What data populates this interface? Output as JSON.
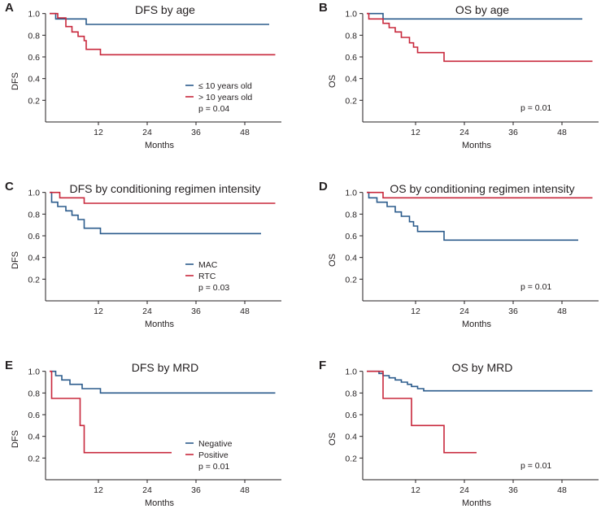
{
  "colors": {
    "blue": "#2b5b8c",
    "red": "#c8283c",
    "axis": "#231f20"
  },
  "chart_data": [
    {
      "id": "A",
      "type": "line",
      "title": "DFS by age",
      "xlabel": "Months",
      "ylabel": "DFS",
      "xlim": [
        -1,
        57
      ],
      "ylim": [
        0,
        1.05
      ],
      "xticks": [
        12,
        24,
        36,
        48
      ],
      "yticks": [
        0.2,
        0.4,
        0.6,
        0.8,
        1.0
      ],
      "xtick_labels": [
        "12",
        "24",
        "36",
        "48"
      ],
      "ytick_labels": [
        "0.2",
        "0.4",
        "0.6",
        "0.8",
        "1.0"
      ],
      "legend": {
        "position": "bottom-right"
      },
      "pvalue": "p = 0.04",
      "series": [
        {
          "name": "≤ 10 years old",
          "color": "blue",
          "points": [
            [
              0,
              1.0
            ],
            [
              1.5,
              1.0
            ],
            [
              1.5,
              0.95
            ],
            [
              9,
              0.95
            ],
            [
              9,
              0.9
            ],
            [
              54,
              0.9
            ]
          ]
        },
        {
          "name": "> 10 years old",
          "color": "red",
          "points": [
            [
              0,
              1.0
            ],
            [
              2,
              1.0
            ],
            [
              2,
              0.96
            ],
            [
              4,
              0.96
            ],
            [
              4,
              0.88
            ],
            [
              5.5,
              0.88
            ],
            [
              5.5,
              0.83
            ],
            [
              7,
              0.83
            ],
            [
              7,
              0.79
            ],
            [
              8.5,
              0.79
            ],
            [
              8.5,
              0.75
            ],
            [
              9,
              0.75
            ],
            [
              9,
              0.67
            ],
            [
              12.5,
              0.67
            ],
            [
              12.5,
              0.62
            ],
            [
              55.5,
              0.62
            ]
          ]
        }
      ]
    },
    {
      "id": "B",
      "type": "line",
      "title": "OS by age",
      "xlabel": "Months",
      "ylabel": "OS",
      "xlim": [
        -1,
        57
      ],
      "ylim": [
        0,
        1.05
      ],
      "xticks": [
        12,
        24,
        36,
        48
      ],
      "yticks": [
        0.2,
        0.4,
        0.6,
        0.8,
        1.0
      ],
      "xtick_labels": [
        "12",
        "24",
        "36",
        "48"
      ],
      "ytick_labels": [
        "0.2",
        "0.4",
        "0.6",
        "0.8",
        "1.0"
      ],
      "legend": {
        "position": "bottom-right"
      },
      "pvalue": "p = 0.01",
      "series": [
        {
          "name": "",
          "color": "blue",
          "points": [
            [
              0,
              1.0
            ],
            [
              4,
              1.0
            ],
            [
              4,
              0.95
            ],
            [
              53,
              0.95
            ]
          ]
        },
        {
          "name": "",
          "color": "red",
          "points": [
            [
              0,
              1.0
            ],
            [
              0.5,
              1.0
            ],
            [
              0.5,
              0.95
            ],
            [
              4,
              0.95
            ],
            [
              4,
              0.91
            ],
            [
              5.5,
              0.91
            ],
            [
              5.5,
              0.87
            ],
            [
              7,
              0.87
            ],
            [
              7,
              0.83
            ],
            [
              8.5,
              0.83
            ],
            [
              8.5,
              0.78
            ],
            [
              10.5,
              0.78
            ],
            [
              10.5,
              0.73
            ],
            [
              11.5,
              0.73
            ],
            [
              11.5,
              0.69
            ],
            [
              12.5,
              0.69
            ],
            [
              12.5,
              0.64
            ],
            [
              19,
              0.64
            ],
            [
              19,
              0.56
            ],
            [
              55.5,
              0.56
            ]
          ]
        }
      ]
    },
    {
      "id": "C",
      "type": "line",
      "title": "DFS by conditioning regimen intensity",
      "xlabel": "Months",
      "ylabel": "DFS",
      "xlim": [
        -1,
        57
      ],
      "ylim": [
        0,
        1.05
      ],
      "xticks": [
        12,
        24,
        36,
        48
      ],
      "yticks": [
        0.2,
        0.4,
        0.6,
        0.8,
        1.0
      ],
      "xtick_labels": [
        "12",
        "24",
        "36",
        "48"
      ],
      "ytick_labels": [
        "0.2",
        "0.4",
        "0.6",
        "0.8",
        "1.0"
      ],
      "legend": {
        "position": "bottom-right"
      },
      "pvalue": "p = 0.03",
      "series": [
        {
          "name": "MAC",
          "color": "blue",
          "points": [
            [
              0,
              1.0
            ],
            [
              0.5,
              1.0
            ],
            [
              0.5,
              0.91
            ],
            [
              2,
              0.91
            ],
            [
              2,
              0.87
            ],
            [
              4,
              0.87
            ],
            [
              4,
              0.83
            ],
            [
              5.5,
              0.83
            ],
            [
              5.5,
              0.79
            ],
            [
              7,
              0.79
            ],
            [
              7,
              0.75
            ],
            [
              8.5,
              0.75
            ],
            [
              8.5,
              0.67
            ],
            [
              12.5,
              0.67
            ],
            [
              12.5,
              0.62
            ],
            [
              52,
              0.62
            ]
          ]
        },
        {
          "name": "RTC",
          "color": "red",
          "points": [
            [
              0,
              1.0
            ],
            [
              2.5,
              1.0
            ],
            [
              2.5,
              0.95
            ],
            [
              8.5,
              0.95
            ],
            [
              8.5,
              0.9
            ],
            [
              55.5,
              0.9
            ]
          ]
        }
      ]
    },
    {
      "id": "D",
      "type": "line",
      "title": "OS by conditioning regimen intensity",
      "xlabel": "Months",
      "ylabel": "OS",
      "xlim": [
        -1,
        57
      ],
      "ylim": [
        0,
        1.05
      ],
      "xticks": [
        12,
        24,
        36,
        48
      ],
      "yticks": [
        0.2,
        0.4,
        0.6,
        0.8,
        1.0
      ],
      "xtick_labels": [
        "12",
        "24",
        "36",
        "48"
      ],
      "ytick_labels": [
        "0.2",
        "0.4",
        "0.6",
        "0.8",
        "1.0"
      ],
      "legend": {
        "position": "bottom-right"
      },
      "pvalue": "p = 0.01",
      "series": [
        {
          "name": "",
          "color": "blue",
          "points": [
            [
              0,
              1.0
            ],
            [
              0.5,
              1.0
            ],
            [
              0.5,
              0.95
            ],
            [
              2.5,
              0.95
            ],
            [
              2.5,
              0.91
            ],
            [
              5,
              0.91
            ],
            [
              5,
              0.87
            ],
            [
              7,
              0.87
            ],
            [
              7,
              0.82
            ],
            [
              8.5,
              0.82
            ],
            [
              8.5,
              0.78
            ],
            [
              10.5,
              0.78
            ],
            [
              10.5,
              0.73
            ],
            [
              11.5,
              0.73
            ],
            [
              11.5,
              0.69
            ],
            [
              12.5,
              0.69
            ],
            [
              12.5,
              0.64
            ],
            [
              19,
              0.64
            ],
            [
              19,
              0.56
            ],
            [
              52,
              0.56
            ]
          ]
        },
        {
          "name": "",
          "color": "red",
          "points": [
            [
              0,
              1.0
            ],
            [
              4,
              1.0
            ],
            [
              4,
              0.95
            ],
            [
              55.5,
              0.95
            ]
          ]
        }
      ]
    },
    {
      "id": "E",
      "type": "line",
      "title": "DFS by MRD",
      "xlabel": "Months",
      "ylabel": "DFS",
      "xlim": [
        -1,
        57
      ],
      "ylim": [
        0,
        1.05
      ],
      "xticks": [
        12,
        24,
        36,
        48
      ],
      "yticks": [
        0.2,
        0.4,
        0.6,
        0.8,
        1.0
      ],
      "xtick_labels": [
        "12",
        "24",
        "36",
        "48"
      ],
      "ytick_labels": [
        "0.2",
        "0.4",
        "0.6",
        "0.8",
        "1.0"
      ],
      "legend": {
        "position": "bottom-right"
      },
      "pvalue": "p = 0.01",
      "series": [
        {
          "name": "Negative",
          "color": "blue",
          "points": [
            [
              0,
              1.0
            ],
            [
              1.5,
              1.0
            ],
            [
              1.5,
              0.96
            ],
            [
              3,
              0.96
            ],
            [
              3,
              0.92
            ],
            [
              5,
              0.92
            ],
            [
              5,
              0.88
            ],
            [
              8,
              0.88
            ],
            [
              8,
              0.84
            ],
            [
              12.5,
              0.84
            ],
            [
              12.5,
              0.8
            ],
            [
              55.5,
              0.8
            ]
          ]
        },
        {
          "name": "Positive",
          "color": "red",
          "points": [
            [
              0,
              1.0
            ],
            [
              0.5,
              1.0
            ],
            [
              0.5,
              0.75
            ],
            [
              7.5,
              0.75
            ],
            [
              7.5,
              0.5
            ],
            [
              8.5,
              0.5
            ],
            [
              8.5,
              0.25
            ],
            [
              30,
              0.25
            ]
          ]
        }
      ]
    },
    {
      "id": "F",
      "type": "line",
      "title": "OS by MRD",
      "xlabel": "Months",
      "ylabel": "OS",
      "xlim": [
        -1,
        57
      ],
      "ylim": [
        0,
        1.05
      ],
      "xticks": [
        12,
        24,
        36,
        48
      ],
      "yticks": [
        0.2,
        0.4,
        0.6,
        0.8,
        1.0
      ],
      "xtick_labels": [
        "12",
        "24",
        "36",
        "48"
      ],
      "ytick_labels": [
        "0.2",
        "0.4",
        "0.6",
        "0.8",
        "1.0"
      ],
      "legend": {
        "position": "bottom-right"
      },
      "pvalue": "p = 0.01",
      "series": [
        {
          "name": "",
          "color": "blue",
          "points": [
            [
              0,
              1.0
            ],
            [
              3,
              1.0
            ],
            [
              3,
              0.98
            ],
            [
              4,
              0.98
            ],
            [
              4,
              0.96
            ],
            [
              5.5,
              0.96
            ],
            [
              5.5,
              0.94
            ],
            [
              7,
              0.94
            ],
            [
              7,
              0.92
            ],
            [
              8.5,
              0.92
            ],
            [
              8.5,
              0.9
            ],
            [
              10,
              0.9
            ],
            [
              10,
              0.88
            ],
            [
              11,
              0.88
            ],
            [
              11,
              0.86
            ],
            [
              12.5,
              0.86
            ],
            [
              12.5,
              0.84
            ],
            [
              14,
              0.84
            ],
            [
              14,
              0.82
            ],
            [
              55.5,
              0.82
            ]
          ]
        },
        {
          "name": "",
          "color": "red",
          "points": [
            [
              0,
              1.0
            ],
            [
              4,
              1.0
            ],
            [
              4,
              0.75
            ],
            [
              11,
              0.75
            ],
            [
              11,
              0.5
            ],
            [
              19,
              0.5
            ],
            [
              19,
              0.25
            ],
            [
              27,
              0.25
            ]
          ]
        }
      ]
    }
  ]
}
